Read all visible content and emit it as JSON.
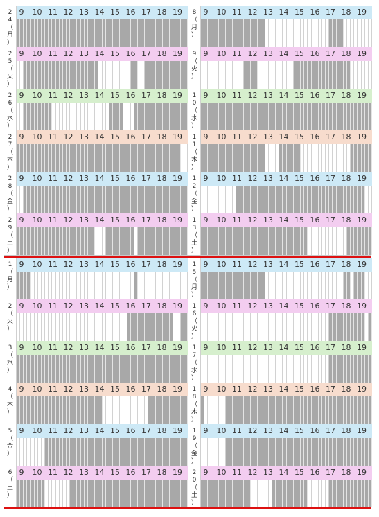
{
  "hours": [
    "9",
    "10",
    "11",
    "12",
    "13",
    "14",
    "15",
    "16",
    "17",
    "18",
    "19"
  ],
  "colors": {
    "mon": "#cde9f6",
    "tue": "#f3cdf0",
    "wed": "#d6efcd",
    "thu": "#f7dccd",
    "fri": "#cde9f6",
    "sat": "#f3cdf0",
    "busy": "#a8a8a8",
    "separator": "#dd1111"
  },
  "blocks": [
    {
      "rows": [
        {
          "color": "mon",
          "left": {
            "date": [
              "2",
              "4",
              "（",
              "月",
              "）"
            ],
            "busy": "111111111111111111111111111111111111111111111111"
          },
          "right": {
            "date": [
              "8",
              "（",
              "月",
              "）"
            ],
            "busy": "111111111111111111000000000000000000111100000000"
          }
        },
        {
          "color": "tue",
          "left": {
            "date": [
              "2",
              "5",
              "（",
              "火",
              "）"
            ],
            "busy": "001111111111111111111110000000001100111111111111"
          },
          "right": {
            "date": [
              "9",
              "（",
              "火",
              "）"
            ],
            "busy": "000000000000111100000000001111111111111111000000"
          }
        },
        {
          "color": "wed",
          "left": {
            "date": [
              "2",
              "6",
              "（",
              "水",
              "）"
            ],
            "busy": "001111111100000000000000001111000111111111111111"
          },
          "right": {
            "date": [
              "1",
              "0",
              "（",
              "水",
              "）"
            ],
            "busy": "111111111111111111111111111111111111111111111111"
          }
        },
        {
          "color": "thu",
          "left": {
            "date": [
              "2",
              "7",
              "（",
              "木",
              "）"
            ],
            "busy": "111111111111111111111111111111111111111111111100"
          },
          "right": {
            "date": [
              "1",
              "1",
              "（",
              "木",
              "）"
            ],
            "busy": "111111111111111111000011111100000000000000111111"
          }
        },
        {
          "color": "fri",
          "left": {
            "date": [
              "2",
              "8",
              "（",
              "金",
              "）"
            ],
            "busy": "001111111111111111111111111111111111111111111111"
          },
          "right": {
            "date": [
              "1",
              "2",
              "（",
              "金",
              "）"
            ],
            "busy": "000000000011111111111111111111111111111111111100"
          }
        },
        {
          "color": "sat",
          "left": {
            "date": [
              "2",
              "9",
              "（",
              "土",
              "）"
            ],
            "busy": "111111111111111111111100011111111011111111111111"
          },
          "right": {
            "date": [
              "1",
              "3",
              "（",
              "土",
              "）"
            ],
            "busy": "111111111111111111111111111111000000000001111111"
          }
        }
      ]
    },
    {
      "rows": [
        {
          "color": "mon",
          "left": {
            "date": [
              "1",
              "（",
              "月",
              "）"
            ],
            "busy": "111100000000000000000000000000000100000000000000"
          },
          "right": {
            "date": [
              "1",
              "5",
              "（",
              "月",
              "）"
            ],
            "busy": "111111111111111111000000000000000000000011011100"
          },
          "badge": "1"
        },
        {
          "color": "tue",
          "left": {
            "date": [
              "2",
              "（",
              "火",
              "）"
            ],
            "busy": "000000000000000000000000000000011111111111110011"
          },
          "right": {
            "date": [
              "1",
              "6",
              "（",
              "火",
              "）"
            ],
            "busy": "000000000000000000000000000000000000111111111101"
          }
        },
        {
          "color": "wed",
          "left": {
            "date": [
              "3",
              "（",
              "水",
              "）"
            ],
            "busy": "111111111111111111111111111111111111111111111111"
          },
          "right": {
            "date": [
              "1",
              "7",
              "（",
              "水",
              "）"
            ],
            "busy": "000000000000000000000000000000000000111111111111"
          }
        },
        {
          "color": "thu",
          "left": {
            "date": [
              "4",
              "（",
              "木",
              "）"
            ],
            "busy": "111111111111111111111111000000000000011111111111"
          },
          "right": {
            "date": [
              "1",
              "8",
              "（",
              "木",
              "）"
            ],
            "busy": "100000011111111111111111111111111111111111111111"
          }
        },
        {
          "color": "fri",
          "left": {
            "date": [
              "5",
              "（",
              "金",
              "）"
            ],
            "busy": "000000001111111111111111111111111111111111111111"
          },
          "right": {
            "date": [
              "1",
              "9",
              "（",
              "金",
              "）"
            ],
            "busy": "000000011111111111111111111111111111111111111111"
          }
        },
        {
          "color": "sat",
          "left": {
            "date": [
              "6",
              "（",
              "土",
              "）"
            ],
            "busy": "111111110000000111111111111111111111111111111111"
          },
          "right": {
            "date": [
              "2",
              "0",
              "（",
              "土",
              "）"
            ],
            "busy": "111111111111110000001111111111000000111111111111"
          }
        }
      ]
    }
  ]
}
